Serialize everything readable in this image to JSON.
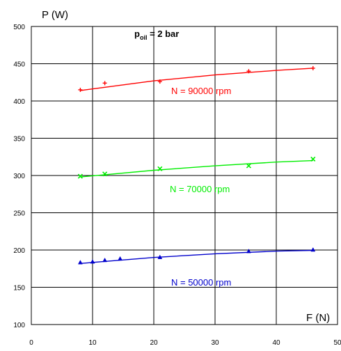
{
  "chart_data": {
    "type": "scatter",
    "title": "",
    "ylabel": "P (W)",
    "xlabel": "F (N)",
    "xlim": [
      0,
      50
    ],
    "ylim": [
      100,
      500
    ],
    "xticks": [
      "0",
      "10",
      "20",
      "30",
      "40",
      "50"
    ],
    "yticks": [
      "100",
      "150",
      "200",
      "250",
      "300",
      "350",
      "400",
      "450",
      "500"
    ],
    "grid": true,
    "annotation": {
      "base": "p",
      "sub": "oil",
      "rest": " = 2 bar"
    },
    "series": [
      {
        "name": "N = 90000 rpm",
        "color": "#ff0000",
        "marker": "plus",
        "x": [
          8,
          12,
          21,
          35.5,
          46
        ],
        "y": [
          415,
          424,
          426,
          440,
          444
        ],
        "fit": [
          [
            8,
            414
          ],
          [
            20,
            427
          ],
          [
            30,
            435
          ],
          [
            40,
            441
          ],
          [
            46,
            444
          ]
        ]
      },
      {
        "name": "N = 70000 rpm",
        "color": "#00ee00",
        "marker": "x",
        "x": [
          8,
          12,
          21,
          35.5,
          46
        ],
        "y": [
          299,
          302,
          309,
          313,
          322
        ],
        "fit": [
          [
            8,
            298
          ],
          [
            20,
            307
          ],
          [
            30,
            313
          ],
          [
            40,
            318
          ],
          [
            46,
            320
          ]
        ]
      },
      {
        "name": "N = 50000 rpm",
        "color": "#0000cc",
        "marker": "triangle",
        "x": [
          8,
          10,
          12,
          14.5,
          21,
          35.5,
          46
        ],
        "y": [
          183,
          184,
          186,
          188,
          190,
          198,
          200
        ],
        "fit": [
          [
            8,
            182
          ],
          [
            20,
            190
          ],
          [
            30,
            195
          ],
          [
            40,
            198.5
          ],
          [
            46,
            199.5
          ]
        ]
      }
    ]
  }
}
